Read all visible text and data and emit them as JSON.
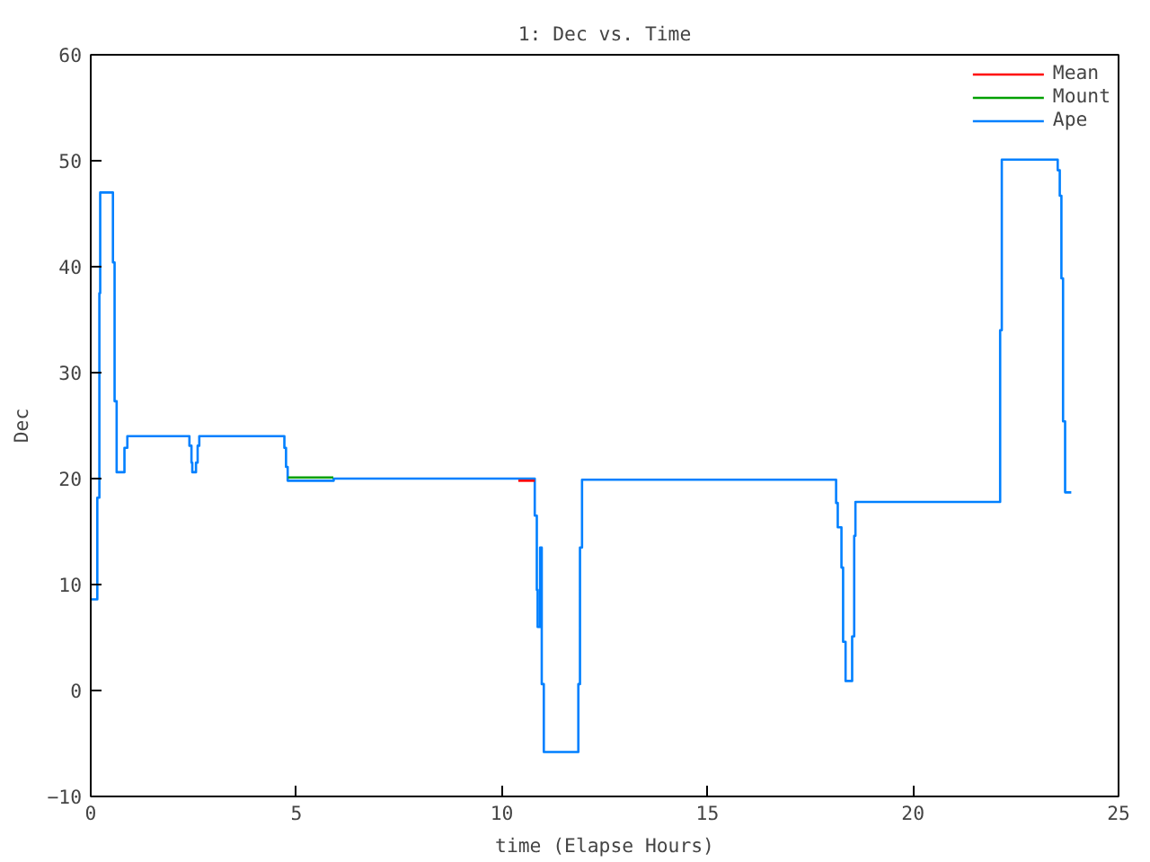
{
  "chart_data": {
    "type": "line",
    "title": "1: Dec vs. Time",
    "xlabel": "time (Elapse Hours)",
    "ylabel": "Dec",
    "xlim": [
      0,
      25
    ],
    "xticks": [
      0,
      5,
      10,
      15,
      20,
      25
    ],
    "ylim": [
      -10,
      60
    ],
    "yticks": [
      -10,
      0,
      10,
      20,
      30,
      40,
      50,
      60
    ],
    "grid": false,
    "legend": "top right",
    "marker": "none",
    "line_style": "solid",
    "series": [
      {
        "name": "Mean",
        "color": "#ff0000",
        "x": [
          10.4,
          10.8
        ],
        "values": [
          19.8,
          19.8
        ]
      },
      {
        "name": "Mount",
        "color": "#00a000",
        "x": [
          4.8,
          5.9
        ],
        "values": [
          20.1,
          20.1
        ]
      },
      {
        "name": "Ape",
        "color": "#0080ff",
        "x": [
          0,
          0.16,
          0.16,
          0.21,
          0.21,
          0.23,
          0.23,
          0.54,
          0.54,
          0.58,
          0.58,
          0.63,
          0.63,
          0.82,
          0.82,
          0.89,
          0.89,
          2.4,
          2.4,
          2.45,
          2.45,
          2.47,
          2.47,
          2.56,
          2.56,
          2.6,
          2.6,
          2.64,
          2.64,
          4.71,
          4.71,
          4.75,
          4.75,
          4.79,
          4.79,
          5.91,
          5.91,
          10.8,
          10.8,
          10.85,
          10.85,
          10.87,
          10.87,
          10.93,
          10.93,
          10.97,
          10.97,
          11.02,
          11.02,
          11.86,
          11.86,
          11.9,
          11.9,
          11.95,
          11.95,
          18.13,
          18.13,
          18.17,
          18.17,
          18.26,
          18.26,
          18.3,
          18.3,
          18.36,
          18.36,
          18.52,
          18.52,
          18.57,
          18.57,
          18.6,
          18.6,
          22.12,
          22.12,
          22.16,
          22.16,
          23.52,
          23.52,
          23.57,
          23.57,
          23.61,
          23.61,
          23.65,
          23.65,
          23.7,
          23.7,
          23.85
        ],
        "values": [
          8.6,
          8.6,
          18.2,
          18.2,
          37.5,
          37.5,
          47,
          47,
          40.4,
          40.4,
          27.3,
          27.3,
          20.6,
          20.6,
          22.9,
          22.9,
          24,
          24,
          23.1,
          23.1,
          21.5,
          21.5,
          20.6,
          20.6,
          21.5,
          21.5,
          23.1,
          23.1,
          24,
          24,
          22.9,
          22.9,
          21.1,
          21.1,
          19.8,
          19.8,
          20,
          20,
          16.5,
          16.5,
          9.5,
          9.5,
          6,
          6,
          13.5,
          13.5,
          0.6,
          0.6,
          -5.8,
          -5.8,
          0.6,
          0.6,
          13.5,
          13.5,
          19.9,
          19.9,
          17.7,
          17.7,
          15.4,
          15.4,
          11.6,
          11.6,
          4.6,
          4.6,
          0.9,
          0.9,
          5.1,
          5.1,
          14.6,
          14.6,
          17.8,
          17.8,
          34,
          34,
          50.1,
          50.1,
          49.1,
          49.1,
          46.7,
          46.7,
          38.9,
          38.9,
          25.4,
          25.4,
          18.7,
          18.7
        ]
      }
    ]
  }
}
